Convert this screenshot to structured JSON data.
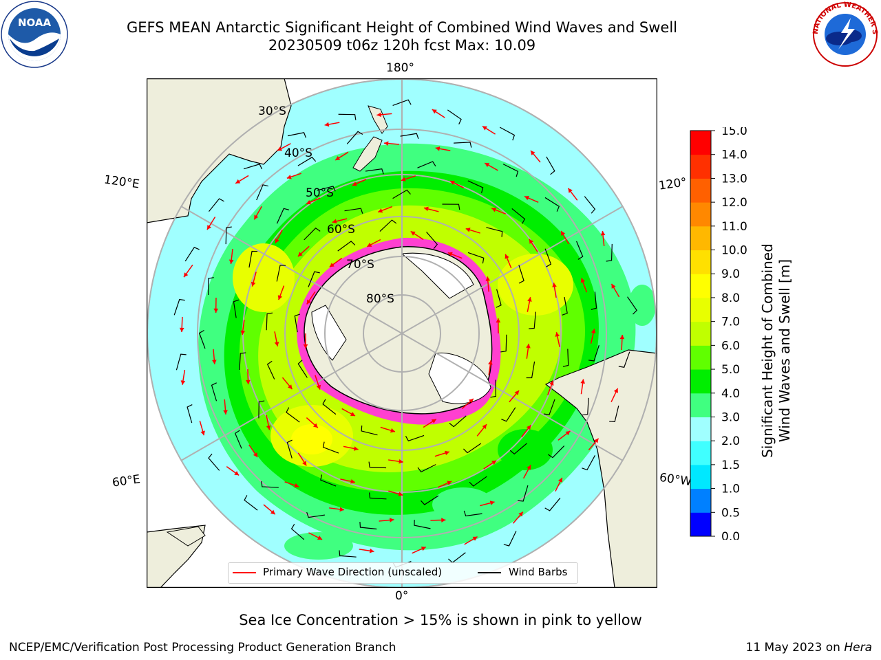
{
  "header": {
    "title_line1": "GEFS MEAN Antarctic Significant Height of Combined Wind Waves and Swell",
    "title_line2": "20230509 t06z 120h fcst   Max: 10.09"
  },
  "logos": {
    "left": {
      "icon": "noaa-logo",
      "text": "NOAA"
    },
    "right": {
      "icon": "nws-logo",
      "text": "NATIONAL WEATHER SERVICE"
    }
  },
  "map": {
    "projection": "south-polar-stereographic",
    "longitude_labels": {
      "top": "180°",
      "left_upper": "120°E",
      "right_upper": "120°",
      "left_lower": "60°E",
      "right_lower": "60°W",
      "bottom": "0°"
    },
    "latitude_labels": [
      "30°S",
      "40°S",
      "50°S",
      "60°S",
      "70°S",
      "80°S"
    ],
    "sea_ice_color": "#ff40d0",
    "land_color": "#eeeedc",
    "graticule_color": "#b0b0b0"
  },
  "legend": {
    "wave_label": "Primary Wave Direction (unscaled)",
    "wave_color": "#ff0000",
    "wind_label": "Wind Barbs",
    "wind_color": "#000000"
  },
  "colorbar": {
    "title": "Significant Height of Combined Wind Waves and Swell [m]",
    "title_line1": "Significant Height of Combined",
    "title_line2": "Wind Waves and Swell [m]",
    "ticks": [
      "0.0",
      "0.5",
      "1.0",
      "1.5",
      "2.0",
      "3.0",
      "4.0",
      "5.0",
      "6.0",
      "7.0",
      "8.0",
      "9.0",
      "10.0",
      "11.0",
      "12.0",
      "13.0",
      "14.0",
      "15.0"
    ],
    "colors": [
      "#0000ff",
      "#0080ff",
      "#00e8ff",
      "#40ffff",
      "#a0ffff",
      "#40ff80",
      "#00ee00",
      "#60ff00",
      "#c0ff00",
      "#e8ff00",
      "#ffff00",
      "#ffe000",
      "#ffb800",
      "#ff8800",
      "#ff6000",
      "#ff3000",
      "#ff0000"
    ]
  },
  "note": "Sea Ice Concentration > 15% is shown in pink to yellow",
  "footer": {
    "credit": "NCEP/EMC/Verification Post Processing Product Generation Branch",
    "date": "11 May 2023 on",
    "machine": "Hera"
  }
}
